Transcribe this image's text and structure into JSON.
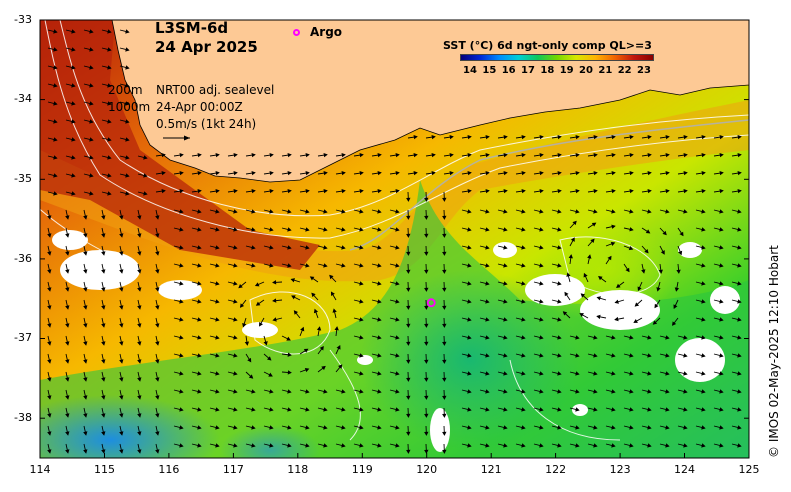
{
  "title": {
    "line1": "L3SM-6d",
    "line2": "24 Apr 2025"
  },
  "argo": {
    "label": "Argo",
    "marker_color": "#ff00ff",
    "float_position": {
      "lon": 120.07,
      "lat": -36.55
    }
  },
  "colorbar": {
    "title": "SST (°C) 6d ngt-only comp QL>=3",
    "ticks": [
      "14",
      "15",
      "16",
      "17",
      "18",
      "19",
      "20",
      "21",
      "22",
      "23"
    ],
    "colors": [
      "#06007a",
      "#0026d6",
      "#008cff",
      "#00cfd6",
      "#0fc85a",
      "#74d700",
      "#d8e800",
      "#ffb300",
      "#f06400",
      "#c2160d",
      "#8a0000"
    ]
  },
  "legend": {
    "depth_shallow": "200m",
    "depth_deep": "1000m",
    "sealevel_label": "NRT00 adj. sealevel",
    "time_label": "24-Apr 00:00Z",
    "vector_scale": "0.5m/s (1kt 24h)"
  },
  "axes": {
    "x": {
      "ticks": [
        "114",
        "115",
        "116",
        "117",
        "118",
        "119",
        "120",
        "121",
        "122",
        "123",
        "124",
        "125"
      ],
      "range": [
        114,
        125
      ]
    },
    "y": {
      "ticks": [
        "-33",
        "-34",
        "-35",
        "-36",
        "-37",
        "-38"
      ],
      "range": [
        -38.5,
        -33
      ]
    }
  },
  "land_color": "#fdc995",
  "credit": "© IMOS 02-May-2025 12:10 Hobart"
}
